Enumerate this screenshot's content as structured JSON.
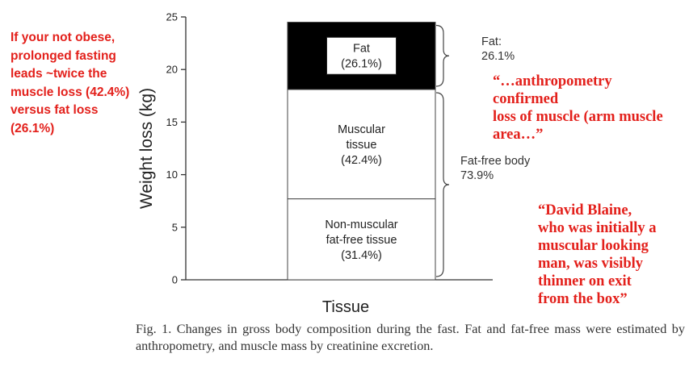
{
  "annotations": {
    "left_note": "If your not obese, prolonged fasting leads ~twice the muscle loss (42.4%) versus fat loss (26.1%)",
    "anthropometry_quote": "“…anthropometry\nconfirmed\nloss of muscle (arm muscle\narea…”",
    "blaine_quote": "“David Blaine,\nwho was initially a\nmuscular looking\nman, was visibly\nthinner on exit\nfrom the box”"
  },
  "caption": "Fig. 1. Changes in gross body composition during the fast. Fat and fat-free mass were estimated by anthropometry, and muscle mass by creatinine excretion.",
  "colors": {
    "annotation_red": "#e3201b",
    "fat_fill": "#000000",
    "tissue_fill": "#ffffff",
    "axis": "#333333"
  },
  "chart_data": {
    "type": "bar",
    "stacked": true,
    "categories": [
      ""
    ],
    "xlabel": "Tissue",
    "ylabel": "Weight loss (kg)",
    "ylim": [
      0,
      25
    ],
    "yticks": [
      0,
      5,
      10,
      15,
      20,
      25
    ],
    "grid": false,
    "series": [
      {
        "label_lines": [
          "Non-muscular",
          "fat-free tissue",
          "(31.4%)"
        ],
        "values": [
          7.7
        ],
        "fill": "#ffffff",
        "text_color": "#222222"
      },
      {
        "label_lines": [
          "Muscular",
          "tissue",
          "(42.4%)"
        ],
        "values": [
          10.4
        ],
        "fill": "#ffffff",
        "text_color": "#222222"
      },
      {
        "label_lines": [
          "Fat",
          "(26.1%)"
        ],
        "values": [
          6.4
        ],
        "fill": "#000000",
        "text_color": "#222222",
        "label_box": true
      }
    ],
    "brackets": [
      {
        "from": 18.1,
        "to": 24.5,
        "label_lines": [
          "Fat:",
          "26.1%"
        ]
      },
      {
        "from": 0,
        "to": 18.1,
        "label_lines": [
          "Fat-free body",
          "73.9%"
        ]
      }
    ]
  }
}
